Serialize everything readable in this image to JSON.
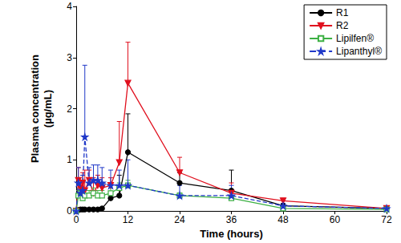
{
  "chart_data": {
    "type": "line",
    "x_label": "Time (hours)",
    "y_label": "Plasma concentration\n(µg/mL)",
    "x": [
      0,
      0.5,
      1,
      1.5,
      2,
      3,
      4,
      5,
      6,
      8,
      10,
      12,
      24,
      36,
      48,
      72
    ],
    "xlim": [
      0,
      72
    ],
    "xticks": [
      0,
      12,
      24,
      36,
      48,
      60,
      72
    ],
    "ylim": [
      0,
      4
    ],
    "yticks": [
      0,
      1,
      2,
      3,
      4
    ],
    "grid": false,
    "legend": "upper right",
    "series": [
      {
        "name": "R1",
        "color": "#000000",
        "marker": "circle",
        "line_style": "solid",
        "values": [
          0,
          0.02,
          0.03,
          0.03,
          0.03,
          0.03,
          0.03,
          0.03,
          0.05,
          0.25,
          0.3,
          1.15,
          0.55,
          0.4,
          0.1,
          0.05
        ],
        "errors": [
          null,
          null,
          null,
          null,
          null,
          null,
          null,
          null,
          null,
          0.1,
          0.4,
          0.75,
          0.2,
          0.4,
          0.05,
          0.02
        ]
      },
      {
        "name": "R2",
        "color": "#e0101e",
        "marker": "triangle_down",
        "line_style": "solid",
        "values": [
          0,
          0.6,
          0.45,
          0.55,
          0.4,
          0.6,
          0.35,
          0.5,
          0.45,
          0.5,
          0.95,
          2.5,
          0.75,
          0.35,
          0.2,
          0.05
        ],
        "errors": [
          null,
          0.25,
          0.15,
          0.2,
          0.4,
          0.2,
          0.3,
          0.2,
          0.2,
          0.15,
          0.8,
          0.8,
          0.3,
          0.2,
          0.05,
          0.03
        ]
      },
      {
        "name": "Lipilfen®",
        "color": "#3cb043",
        "marker": "square_open",
        "line_style": "solid",
        "values": [
          0,
          0.3,
          0.35,
          0.25,
          0.3,
          0.3,
          0.35,
          0.3,
          0.3,
          0.35,
          0.45,
          0.5,
          0.3,
          0.25,
          0.05,
          0.03
        ],
        "errors": [
          null,
          0.1,
          0.1,
          0.1,
          0.1,
          0.1,
          0.1,
          0.1,
          0.1,
          0.1,
          0.1,
          0.1,
          0.05,
          0.05,
          0.03,
          0.02
        ]
      },
      {
        "name": "Lipanthyl®",
        "color": "#2038c8",
        "marker": "star",
        "line_style": "dashed",
        "values": [
          0,
          0.55,
          0.35,
          0.4,
          1.45,
          0.55,
          0.6,
          0.6,
          0.55,
          0.5,
          0.5,
          0.5,
          0.3,
          0.3,
          0.1,
          0.05
        ],
        "errors": [
          null,
          0.3,
          0.2,
          0.3,
          1.4,
          0.3,
          0.3,
          0.3,
          0.3,
          0.3,
          0.3,
          0.5,
          0.2,
          0.2,
          0.05,
          0.03
        ]
      }
    ]
  }
}
